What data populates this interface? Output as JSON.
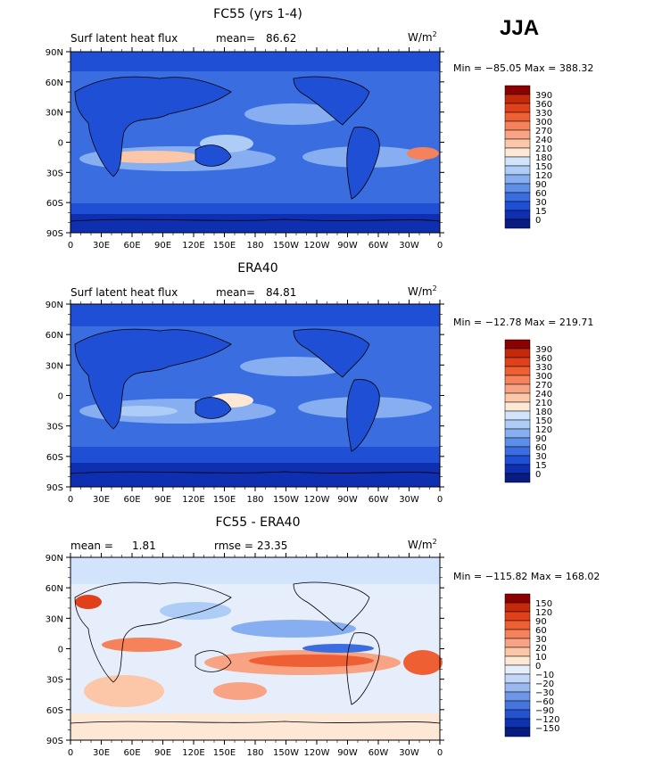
{
  "season": "JJA",
  "panels": [
    {
      "title": "FC55 (yrs 1-4)",
      "var_label": "Surf latent heat flux",
      "stat1_label": "mean=",
      "stat1_value": "86.62",
      "stat2_label": "",
      "stat2_value": "",
      "units": "W/m",
      "units_sup": "2",
      "minmax": "Min = −85.05 Max = 388.32",
      "colorbar_labels": [
        "390",
        "360",
        "330",
        "300",
        "270",
        "240",
        "210",
        "180",
        "150",
        "120",
        "90",
        "60",
        "30",
        "15",
        "0"
      ],
      "colorbar_colors": [
        "#8b0000",
        "#c42a0a",
        "#e0401a",
        "#ef5f34",
        "#f5825a",
        "#f8a384",
        "#fbc7a8",
        "#fde8d6",
        "#d2e4fb",
        "#aecdf6",
        "#86aef0",
        "#5d8ee8",
        "#3a6ee0",
        "#1e4fd4",
        "#0e2fb0",
        "#071b80"
      ]
    },
    {
      "title": "ERA40",
      "var_label": "Surf latent heat flux",
      "stat1_label": "mean=",
      "stat1_value": "84.81",
      "stat2_label": "",
      "stat2_value": "",
      "units": "W/m",
      "units_sup": "2",
      "minmax": "Min = −12.78 Max = 219.71",
      "colorbar_labels": [
        "390",
        "360",
        "330",
        "300",
        "270",
        "240",
        "210",
        "180",
        "150",
        "120",
        "90",
        "60",
        "30",
        "15",
        "0"
      ],
      "colorbar_colors": [
        "#8b0000",
        "#c42a0a",
        "#e0401a",
        "#ef5f34",
        "#f5825a",
        "#f8a384",
        "#fbc7a8",
        "#fde8d6",
        "#d2e4fb",
        "#aecdf6",
        "#86aef0",
        "#5d8ee8",
        "#3a6ee0",
        "#1e4fd4",
        "#0e2fb0",
        "#071b80"
      ]
    },
    {
      "title": "FC55 - ERA40",
      "var_label": "",
      "stat1_label": "mean =",
      "stat1_value": "1.81",
      "stat2_label": "rmse =",
      "stat2_value": "23.35",
      "units": "W/m",
      "units_sup": "2",
      "minmax": "Min = −115.82 Max = 168.02",
      "colorbar_labels": [
        "150",
        "120",
        "90",
        "60",
        "30",
        "20",
        "10",
        "0",
        "−10",
        "−20",
        "−30",
        "−60",
        "−90",
        "−120",
        "−150"
      ],
      "colorbar_colors": [
        "#8b0000",
        "#c42a0a",
        "#e0401a",
        "#ef5f34",
        "#f5825a",
        "#f8a384",
        "#fbc7a8",
        "#fde8d6",
        "#e6eefb",
        "#c3d6f7",
        "#99b8f0",
        "#6d96e8",
        "#4675dd",
        "#2453cf",
        "#0e32b0",
        "#071b80"
      ]
    }
  ],
  "lat_labels": [
    "90N",
    "60N",
    "30N",
    "0",
    "30S",
    "60S",
    "90S"
  ],
  "lon_labels": [
    "0",
    "30E",
    "60E",
    "90E",
    "120E",
    "150E",
    "180",
    "150W",
    "120W",
    "90W",
    "60W",
    "30W",
    "0"
  ]
}
